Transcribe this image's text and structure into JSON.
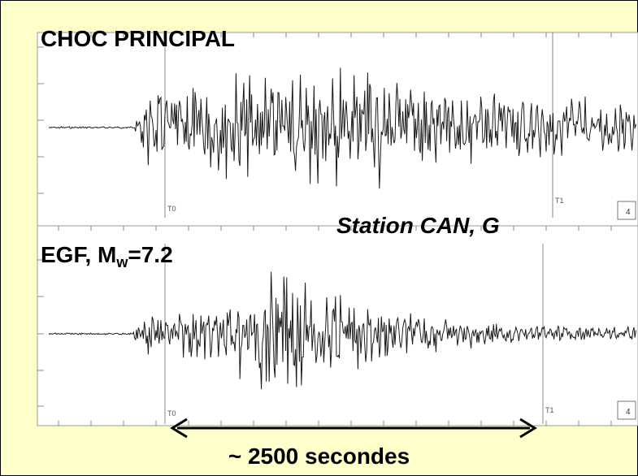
{
  "chart_data": {
    "type": "line",
    "panels": [
      {
        "label": "CHOC PRINCIPAL",
        "markers": [
          "T0",
          "T1"
        ],
        "box_label": "4"
      },
      {
        "label_prefix": "EGF, M",
        "label_sub": "w",
        "label_suffix": "=7.2",
        "markers": [
          "T0",
          "T1"
        ],
        "box_label": "4"
      }
    ],
    "station": "Station CAN, G",
    "duration_label": "~ 2500 secondes",
    "trace_color": "#1a1a1a",
    "background": "#ffffcc"
  }
}
